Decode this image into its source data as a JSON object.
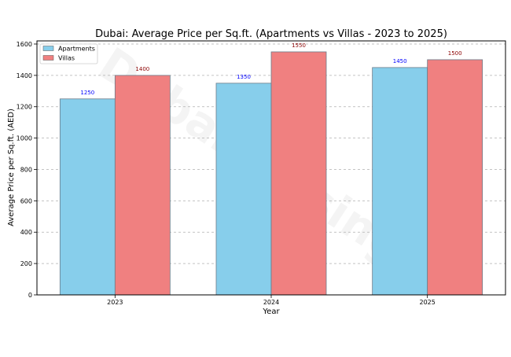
{
  "chart_data": {
    "type": "bar",
    "title": "Dubai: Average Price per Sq.ft. (Apartments vs Villas - 2023 to 2025)",
    "xlabel": "Year",
    "ylabel": "Average Price per Sq.ft. (AED)",
    "categories": [
      "2023",
      "2024",
      "2025"
    ],
    "series": [
      {
        "name": "Apartments",
        "values": [
          1250,
          1350,
          1450
        ],
        "color": "#87ceeb",
        "label_color": "#0000ff"
      },
      {
        "name": "Villas",
        "values": [
          1400,
          1550,
          1500
        ],
        "color": "#f08080",
        "label_color": "#8b0000"
      }
    ],
    "ylim": [
      0,
      1620
    ],
    "yticks": [
      0,
      200,
      400,
      600,
      800,
      1000,
      1200,
      1400,
      1600
    ],
    "grid": "y-dashed",
    "legend_position": "top-left",
    "watermark": "Dubaihousing"
  }
}
